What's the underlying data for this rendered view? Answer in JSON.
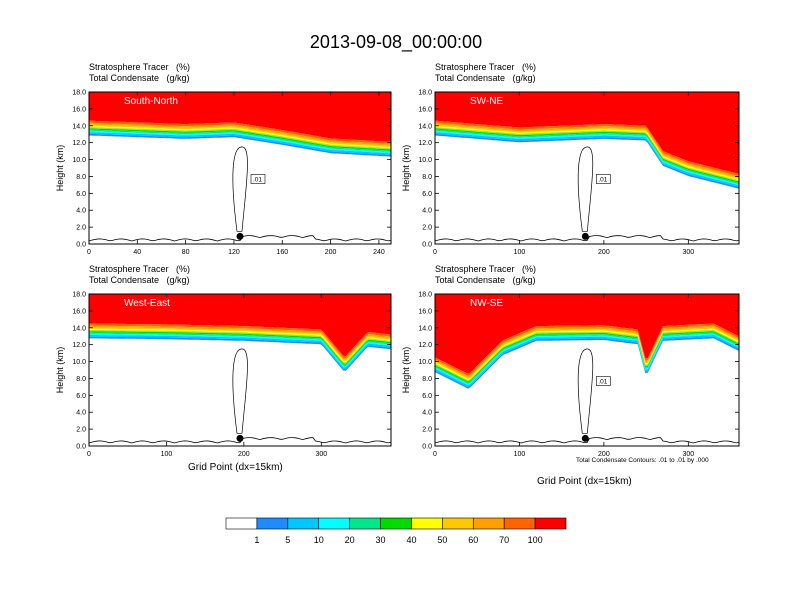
{
  "title": "2013-09-08_00:00:00",
  "footnote": "Total Condensate Contours: .01 to .01 by .000",
  "colorbar": {
    "labels": [
      "1",
      "5",
      "10",
      "20",
      "30",
      "40",
      "50",
      "60",
      "70",
      "100"
    ],
    "colors": [
      "#ffffff",
      "#1e8cff",
      "#00c8ff",
      "#00ffff",
      "#00e68c",
      "#00dc00",
      "#a0e632",
      "#ffff00",
      "#ffc800",
      "#ffa000",
      "#ff6400",
      "#ff0000"
    ]
  },
  "chart_data": [
    {
      "type": "heatmap",
      "id": "south-north",
      "field_labels": [
        "Stratosphere Tracer   (%)",
        "Total Condensate   (g/kg)"
      ],
      "panel_label": "South-North",
      "xlabel": "",
      "ylabel": "Height (km)",
      "xlim": [
        0,
        250
      ],
      "ylim": [
        0,
        18
      ],
      "xticks": [
        "0",
        "40",
        "80",
        "120",
        "160",
        "200",
        "240"
      ],
      "yticks": [
        "0.0",
        "2.0",
        "4.0",
        "6.0",
        "8.0",
        "10.0",
        "12.0",
        "14.0",
        "16.0",
        "18.0"
      ],
      "contour_label": ".01",
      "tropopause_km": [
        [
          0,
          14.6
        ],
        [
          40,
          14.4
        ],
        [
          80,
          14.2
        ],
        [
          120,
          14.4
        ],
        [
          160,
          13.5
        ],
        [
          200,
          12.5
        ],
        [
          250,
          12.1
        ]
      ],
      "marker_x": 125
    },
    {
      "type": "heatmap",
      "id": "sw-ne",
      "field_labels": [
        "Stratosphere Tracer   (%)",
        "Total Condensate   (g/kg)"
      ],
      "panel_label": "SW-NE",
      "xlabel": "",
      "ylabel": "Height (km)",
      "xlim": [
        0,
        360
      ],
      "ylim": [
        0,
        18
      ],
      "xticks": [
        "0",
        "100",
        "200",
        "300"
      ],
      "yticks": [
        "0.0",
        "2.0",
        "4.0",
        "6.0",
        "8.0",
        "10.0",
        "12.0",
        "14.0",
        "16.0",
        "18.0"
      ],
      "contour_label": ".01",
      "tropopause_km": [
        [
          0,
          14.6
        ],
        [
          100,
          13.8
        ],
        [
          200,
          14.2
        ],
        [
          250,
          14.0
        ],
        [
          270,
          11.0
        ],
        [
          300,
          9.8
        ],
        [
          360,
          8.3
        ]
      ],
      "marker_x": 178
    },
    {
      "type": "heatmap",
      "id": "west-east",
      "field_labels": [
        "Stratosphere Tracer   (%)",
        "Total Condensate   (g/kg)"
      ],
      "panel_label": "West-East",
      "xlabel": "Grid Point (dx=15km)",
      "ylabel": "Height (km)",
      "xlim": [
        0,
        390
      ],
      "ylim": [
        0,
        18
      ],
      "xticks": [
        "0",
        "100",
        "200",
        "300"
      ],
      "yticks": [
        "0.0",
        "2.0",
        "4.0",
        "6.0",
        "8.0",
        "10.0",
        "12.0",
        "14.0",
        "16.0",
        "18.0"
      ],
      "contour_label": "",
      "tropopause_km": [
        [
          0,
          14.5
        ],
        [
          100,
          14.4
        ],
        [
          200,
          14.2
        ],
        [
          300,
          13.8
        ],
        [
          330,
          10.5
        ],
        [
          360,
          13.5
        ],
        [
          390,
          13.2
        ]
      ],
      "marker_x": 195
    },
    {
      "type": "heatmap",
      "id": "nw-se",
      "field_labels": [
        "Stratosphere Tracer   (%)",
        "Total Condensate   (g/kg)"
      ],
      "panel_label": "NW-SE",
      "xlabel": "Grid Point (dx=15km)",
      "ylabel": "Height (km)",
      "xlim": [
        0,
        360
      ],
      "ylim": [
        0,
        18
      ],
      "xticks": [
        "0",
        "100",
        "200",
        "300"
      ],
      "yticks": [
        "0.0",
        "2.0",
        "4.0",
        "6.0",
        "8.0",
        "10.0",
        "12.0",
        "14.0",
        "16.0",
        "18.0"
      ],
      "contour_label": ".01",
      "tropopause_km": [
        [
          0,
          10.5
        ],
        [
          40,
          8.5
        ],
        [
          80,
          12.5
        ],
        [
          120,
          14.2
        ],
        [
          200,
          14.3
        ],
        [
          240,
          13.8
        ],
        [
          250,
          10.0
        ],
        [
          270,
          14.2
        ],
        [
          330,
          14.5
        ],
        [
          360,
          13.0
        ]
      ],
      "marker_x": 178
    }
  ]
}
